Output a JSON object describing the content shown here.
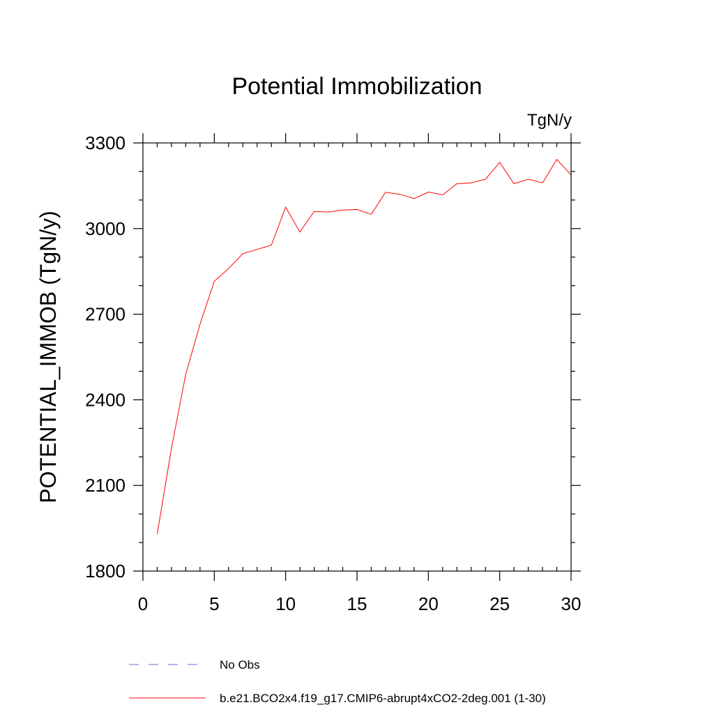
{
  "chart_data": {
    "type": "line",
    "title": "Potential Immobilization",
    "units": "TgN/y",
    "xlabel": "",
    "ylabel": "POTENTIAL_IMMOB  (TgN/y)",
    "xlim": [
      0,
      30
    ],
    "ylim": [
      1800,
      3300
    ],
    "xticks": [
      0,
      5,
      10,
      15,
      20,
      25,
      30
    ],
    "yticks": [
      1800,
      2100,
      2400,
      2700,
      3000,
      3300
    ],
    "grid": false,
    "legend_position": "bottom",
    "series": [
      {
        "name": "No Obs",
        "color": "#6a6ad8",
        "dash": "dashed",
        "x": [],
        "values": []
      },
      {
        "name": "b.e21.BCO2x4.f19_g17.CMIP6-abrupt4xCO2-2deg.001 (1-30)",
        "color": "#ff0000",
        "dash": "solid",
        "x": [
          1,
          2,
          3,
          4,
          5,
          6,
          7,
          8,
          9,
          10,
          11,
          12,
          13,
          14,
          15,
          16,
          17,
          18,
          19,
          20,
          21,
          22,
          23,
          24,
          25,
          26,
          27,
          28,
          29,
          30
        ],
        "values": [
          1930,
          2230,
          2490,
          2665,
          2815,
          2860,
          2912,
          2927,
          2942,
          3075,
          2988,
          3060,
          3058,
          3065,
          3067,
          3050,
          3127,
          3120,
          3105,
          3128,
          3118,
          3157,
          3160,
          3173,
          3232,
          3157,
          3173,
          3160,
          3242,
          3188
        ]
      }
    ]
  }
}
